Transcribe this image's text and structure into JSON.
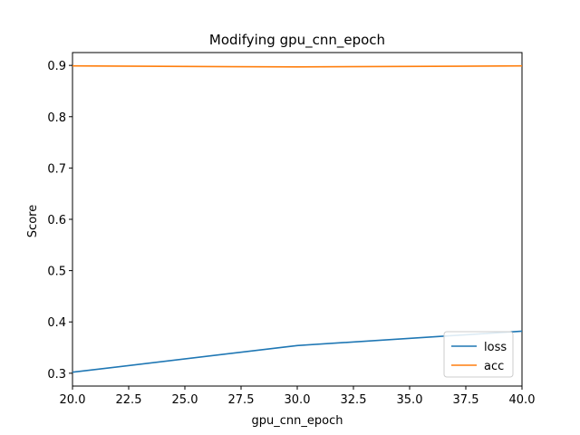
{
  "chart_data": {
    "type": "line",
    "title": "Modifying gpu_cnn_epoch",
    "xlabel": "gpu_cnn_epoch",
    "ylabel": "Score",
    "xlim": [
      20,
      40
    ],
    "ylim": [
      0.275,
      0.925
    ],
    "x_ticks": [
      "20.0",
      "22.5",
      "25.0",
      "27.5",
      "30.0",
      "32.5",
      "35.0",
      "37.5",
      "40.0"
    ],
    "y_ticks": [
      "0.3",
      "0.4",
      "0.5",
      "0.6",
      "0.7",
      "0.8",
      "0.9"
    ],
    "grid": false,
    "legend_position": "bottom-right",
    "x": [
      20,
      30,
      40
    ],
    "series": [
      {
        "name": "loss",
        "color": "#1f77b4",
        "values": [
          0.302,
          0.354,
          0.382
        ]
      },
      {
        "name": "acc",
        "color": "#ff7f0e",
        "values": [
          0.899,
          0.897,
          0.899
        ]
      }
    ]
  }
}
